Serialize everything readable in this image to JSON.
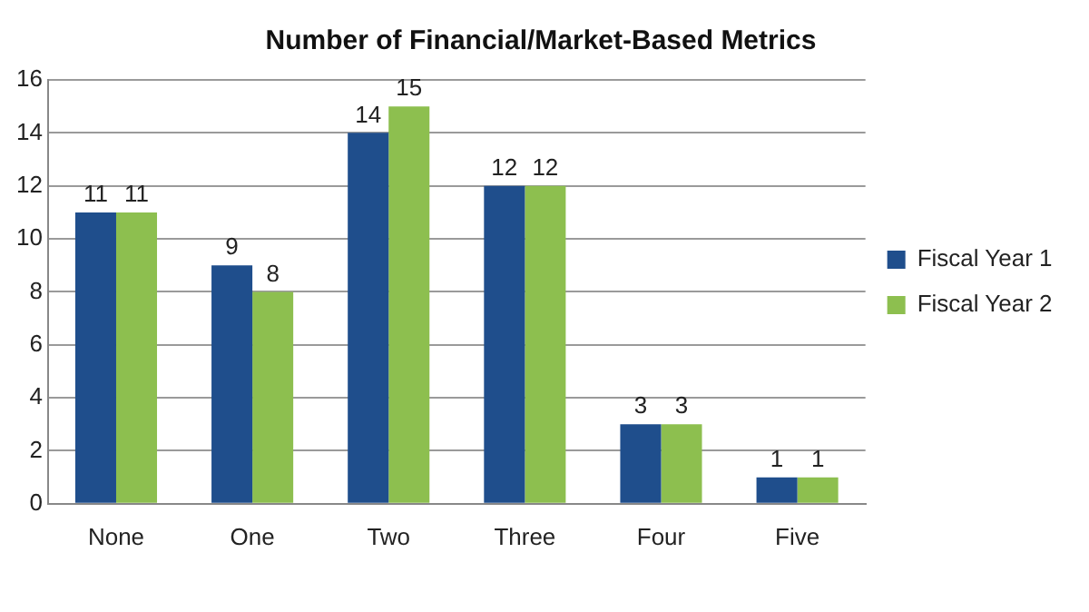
{
  "chart_data": {
    "type": "bar",
    "title": "Number of Financial/Market-Based Metrics",
    "categories": [
      "None",
      "One",
      "Two",
      "Three",
      "Four",
      "Five"
    ],
    "series": [
      {
        "name": "Fiscal Year 1",
        "color": "#1f4e8c",
        "values": [
          11,
          9,
          14,
          12,
          3,
          1
        ]
      },
      {
        "name": "Fiscal Year 2",
        "color": "#8dbf4f",
        "values": [
          11,
          8,
          15,
          12,
          3,
          1
        ]
      }
    ],
    "ylim": [
      0,
      16
    ],
    "yticks": [
      0,
      2,
      4,
      6,
      8,
      10,
      12,
      14,
      16
    ],
    "grid": "y",
    "legend": "right",
    "data_labels": true
  }
}
